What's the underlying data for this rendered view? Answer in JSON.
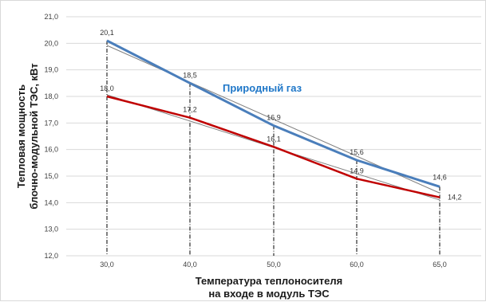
{
  "chart_data": {
    "type": "line",
    "title": "",
    "xlabel_lines": [
      "Температура теплоносителя",
      "на входе в модуль ТЭС"
    ],
    "ylabel_lines": [
      "Тепловая мощность",
      "блочно-модульной ТЭС, кВт"
    ],
    "categories": [
      "30,0",
      "40,0",
      "50,0",
      "60,0",
      "65,0"
    ],
    "ylim": [
      12.0,
      21.0
    ],
    "y_ticks": [
      "12,0",
      "13,0",
      "14,0",
      "15,0",
      "16,0",
      "17,0",
      "18,0",
      "19,0",
      "20,0",
      "21,0"
    ],
    "grid": "horizontal",
    "series": [
      {
        "name": "Природный газ",
        "color": "#4a7ebb",
        "values": [
          20.1,
          18.5,
          16.9,
          15.6,
          14.6
        ],
        "labels": [
          "20,1",
          "18,5",
          "16,9",
          "15,6",
          "14,6"
        ],
        "trendline_color": "#7f7f7f"
      },
      {
        "color": "#c00000",
        "values": [
          18.0,
          17.2,
          16.1,
          14.9,
          14.2
        ],
        "labels": [
          "18,0",
          "17,2",
          "16,1",
          "14,9",
          "14,2"
        ],
        "trendline_color": "#7f7f7f"
      }
    ],
    "annotation": {
      "text": "Природный газ",
      "color": "#1f77c8"
    },
    "drop_lines": true
  }
}
